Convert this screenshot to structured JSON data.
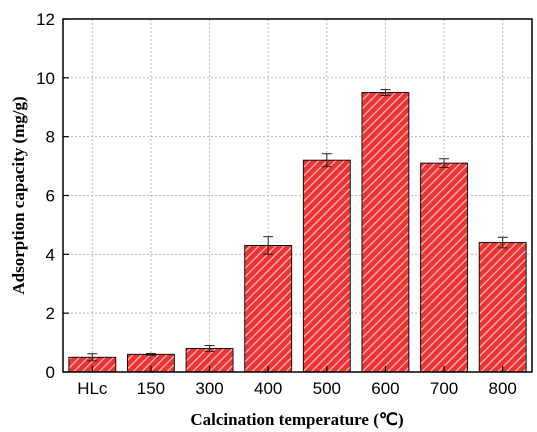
{
  "chart_data": {
    "type": "bar",
    "xlabel": "Calcination temperature (℃)",
    "ylabel": "Adsorption capacity  (mg/g)",
    "categories": [
      "HLc",
      "150",
      "300",
      "400",
      "500",
      "600",
      "700",
      "800"
    ],
    "values": [
      0.5,
      0.6,
      0.8,
      4.3,
      7.2,
      9.5,
      7.1,
      4.4
    ],
    "errors": [
      0.12,
      0.03,
      0.1,
      0.3,
      0.22,
      0.1,
      0.15,
      0.18
    ],
    "ylim": [
      0,
      12
    ],
    "yticks": [
      "0",
      "2",
      "4",
      "6",
      "8",
      "10",
      "12"
    ],
    "grid": true,
    "bar_color": "#ee3333",
    "hatch_color": "#ffffff"
  }
}
